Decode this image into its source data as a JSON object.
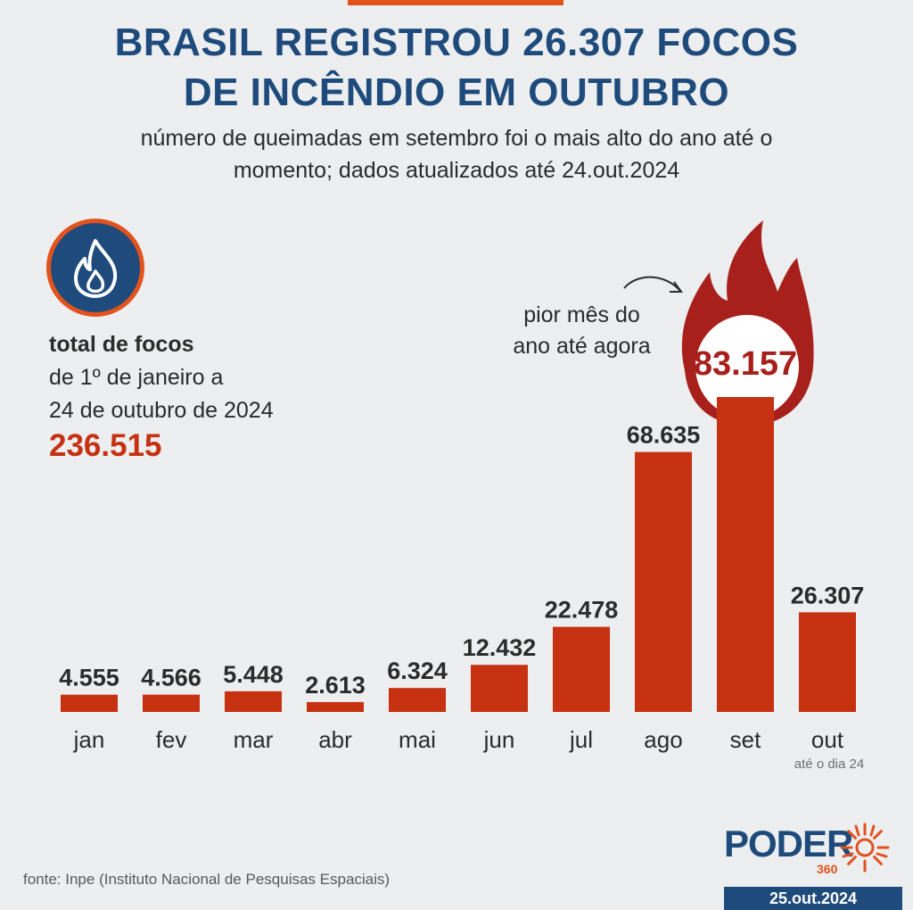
{
  "title": {
    "line1": "BRASIL REGISTROU 26.307 FOCOS",
    "line2": "DE INCÊNDIO EM OUTUBRO"
  },
  "subtitle": {
    "line1": "número de queimadas em setembro foi o mais alto do ano até o",
    "line2": "momento; dados atualizados até 24.out.2024"
  },
  "total": {
    "label": "total de focos",
    "line1": "de 1º de janeiro a",
    "line2": "24 de outubro de 2024",
    "value": "236.515"
  },
  "annotation": {
    "line1": "pior mês do",
    "line2": "ano até agora"
  },
  "oct_note": "até o dia 24",
  "source": "fonte: Inpe (Instituto Nacional de Pesquisas Espaciais)",
  "logo": {
    "word": "PODER",
    "number": "360"
  },
  "date": "25.out.2024",
  "colors": {
    "bar": "#c63112",
    "highlight": "#a8201c",
    "title": "#1f4b7c",
    "accent": "#e2521d",
    "background": "#eceeef"
  },
  "icon": "flame-icon",
  "chart_data": {
    "type": "bar",
    "title": "",
    "xlabel": "",
    "ylabel": "",
    "categories": [
      "jan",
      "fev",
      "mar",
      "abr",
      "mai",
      "jun",
      "jul",
      "ago",
      "set",
      "out"
    ],
    "values": [
      4555,
      4566,
      5448,
      2613,
      6324,
      12432,
      22478,
      68635,
      83157,
      26307
    ],
    "labels": [
      "4.555",
      "4.566",
      "5.448",
      "2.613",
      "6.324",
      "12.432",
      "22.478",
      "68.635",
      "83.157",
      "26.307"
    ],
    "highlight_index": 8,
    "ylim": [
      0,
      83157
    ],
    "grid": false,
    "legend": "none"
  }
}
